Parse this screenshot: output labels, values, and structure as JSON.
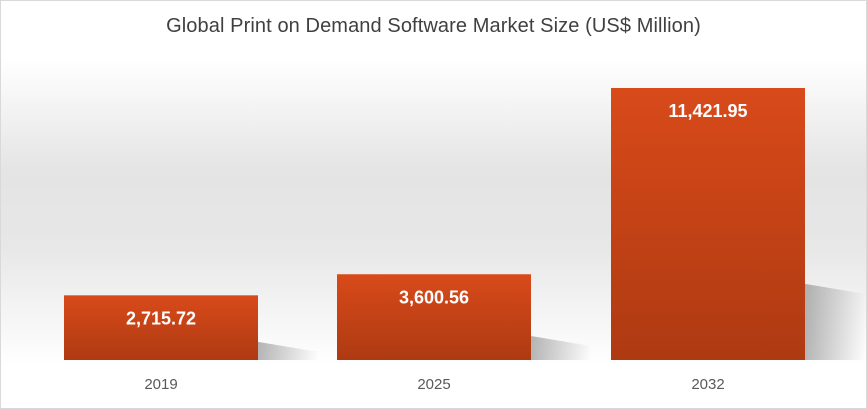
{
  "chart_data": {
    "type": "bar",
    "title": "Global Print on Demand Software Market Size (US$ Million)",
    "categories": [
      "2019",
      "2025",
      "2032"
    ],
    "values": [
      2715.72,
      3600.56,
      11421.95
    ],
    "value_labels": [
      "2,715.72",
      "3,600.56",
      "11,421.95"
    ],
    "xlabel": "",
    "ylabel": "",
    "ylim": [
      0,
      11421.95
    ],
    "grid": false,
    "legend": "none",
    "bar_color": "#D04A1A"
  }
}
